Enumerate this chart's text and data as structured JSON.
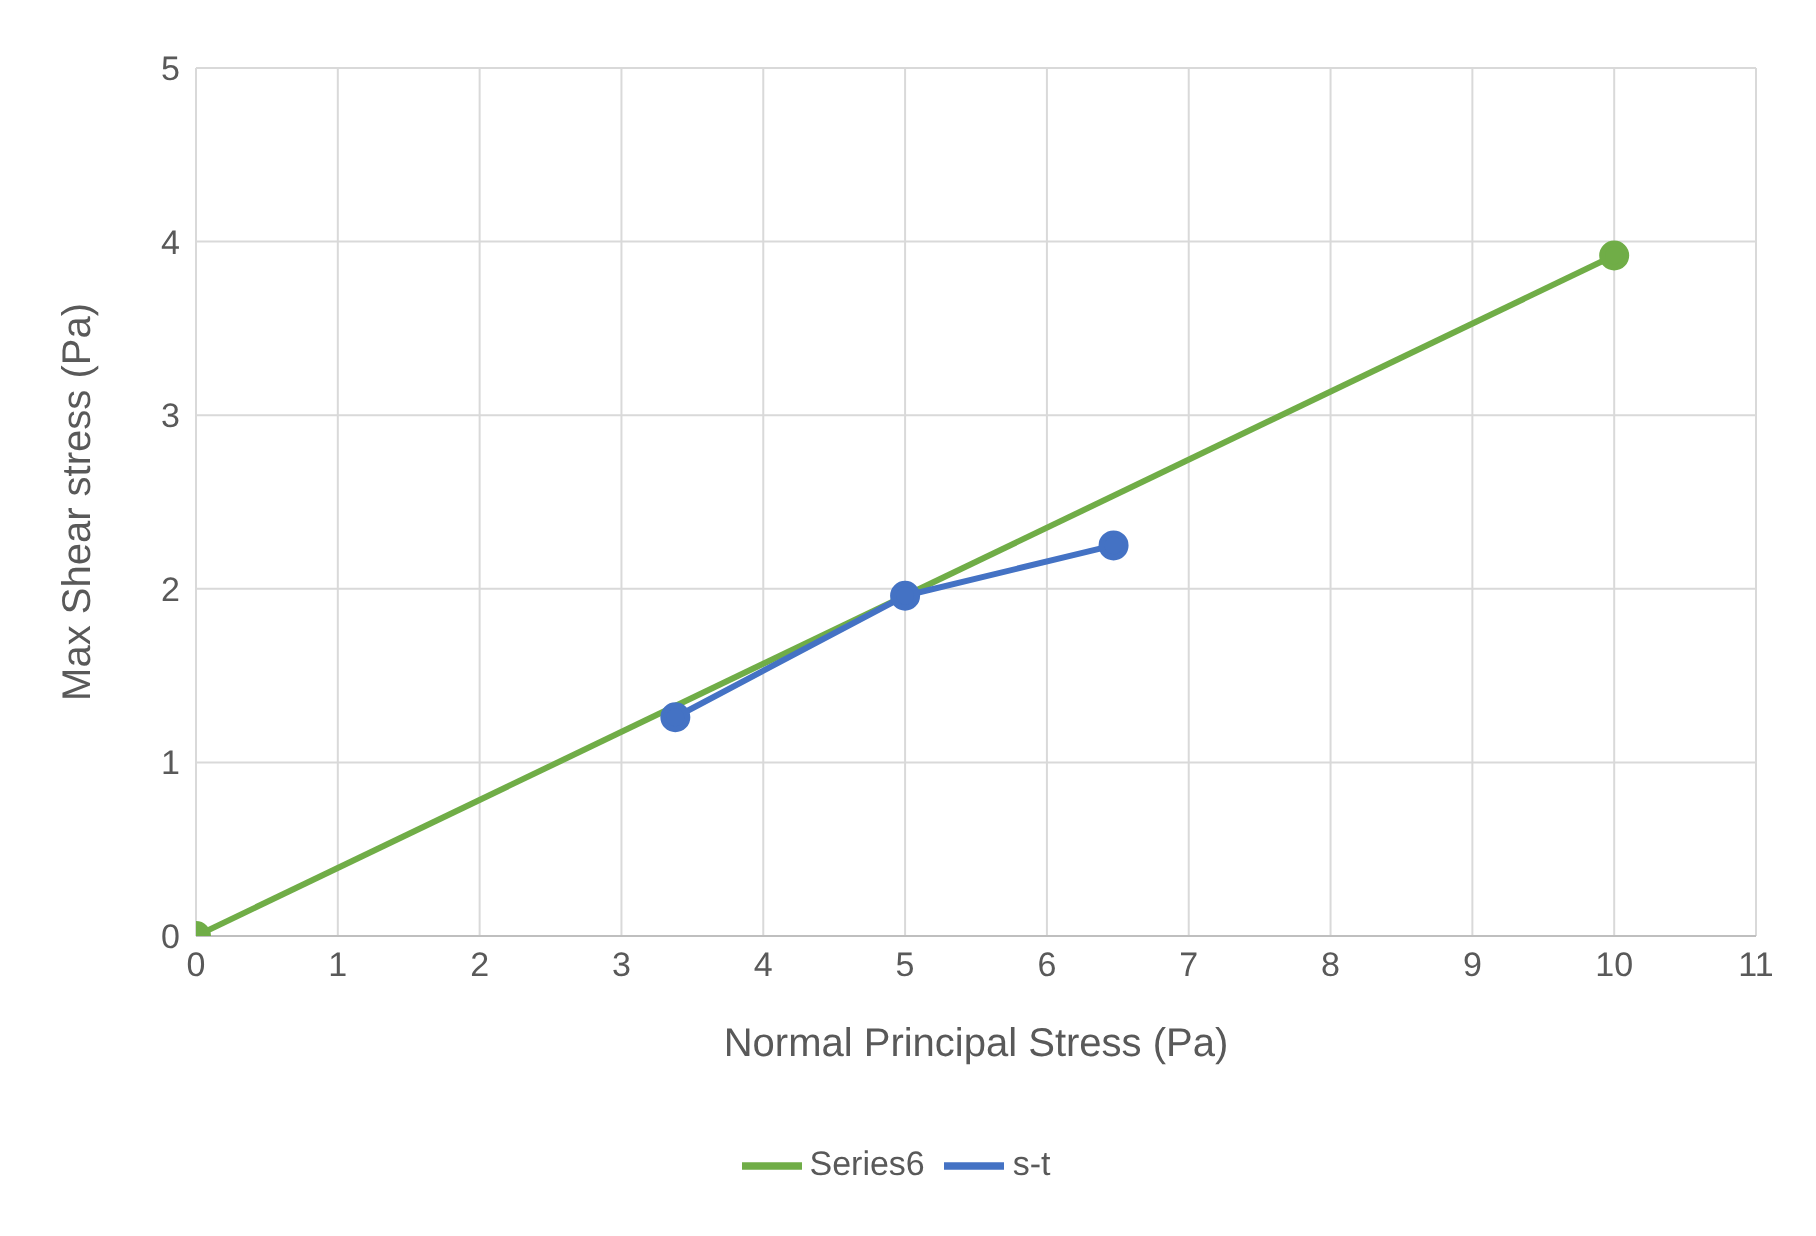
{
  "chart_data": {
    "type": "line",
    "xlabel": "Normal Principal Stress (Pa)",
    "ylabel": "Max Shear stress (Pa)",
    "xlim": [
      0,
      11
    ],
    "xticks": [
      0,
      1,
      2,
      3,
      4,
      5,
      6,
      7,
      8,
      9,
      10,
      11
    ],
    "ylim": [
      0,
      5
    ],
    "yticks": [
      0,
      1,
      2,
      3,
      4,
      5
    ],
    "grid": true,
    "legend": "bottom",
    "marker": "circle",
    "line_style": "solid",
    "series": [
      {
        "name": "Series6",
        "color": "#70ad47",
        "x": [
          0,
          10
        ],
        "values": [
          0,
          3.92
        ]
      },
      {
        "name": "s-t",
        "color": "#4472c4",
        "x": [
          3.38,
          5.0,
          6.47
        ],
        "values": [
          1.26,
          1.96,
          2.25
        ]
      }
    ]
  }
}
